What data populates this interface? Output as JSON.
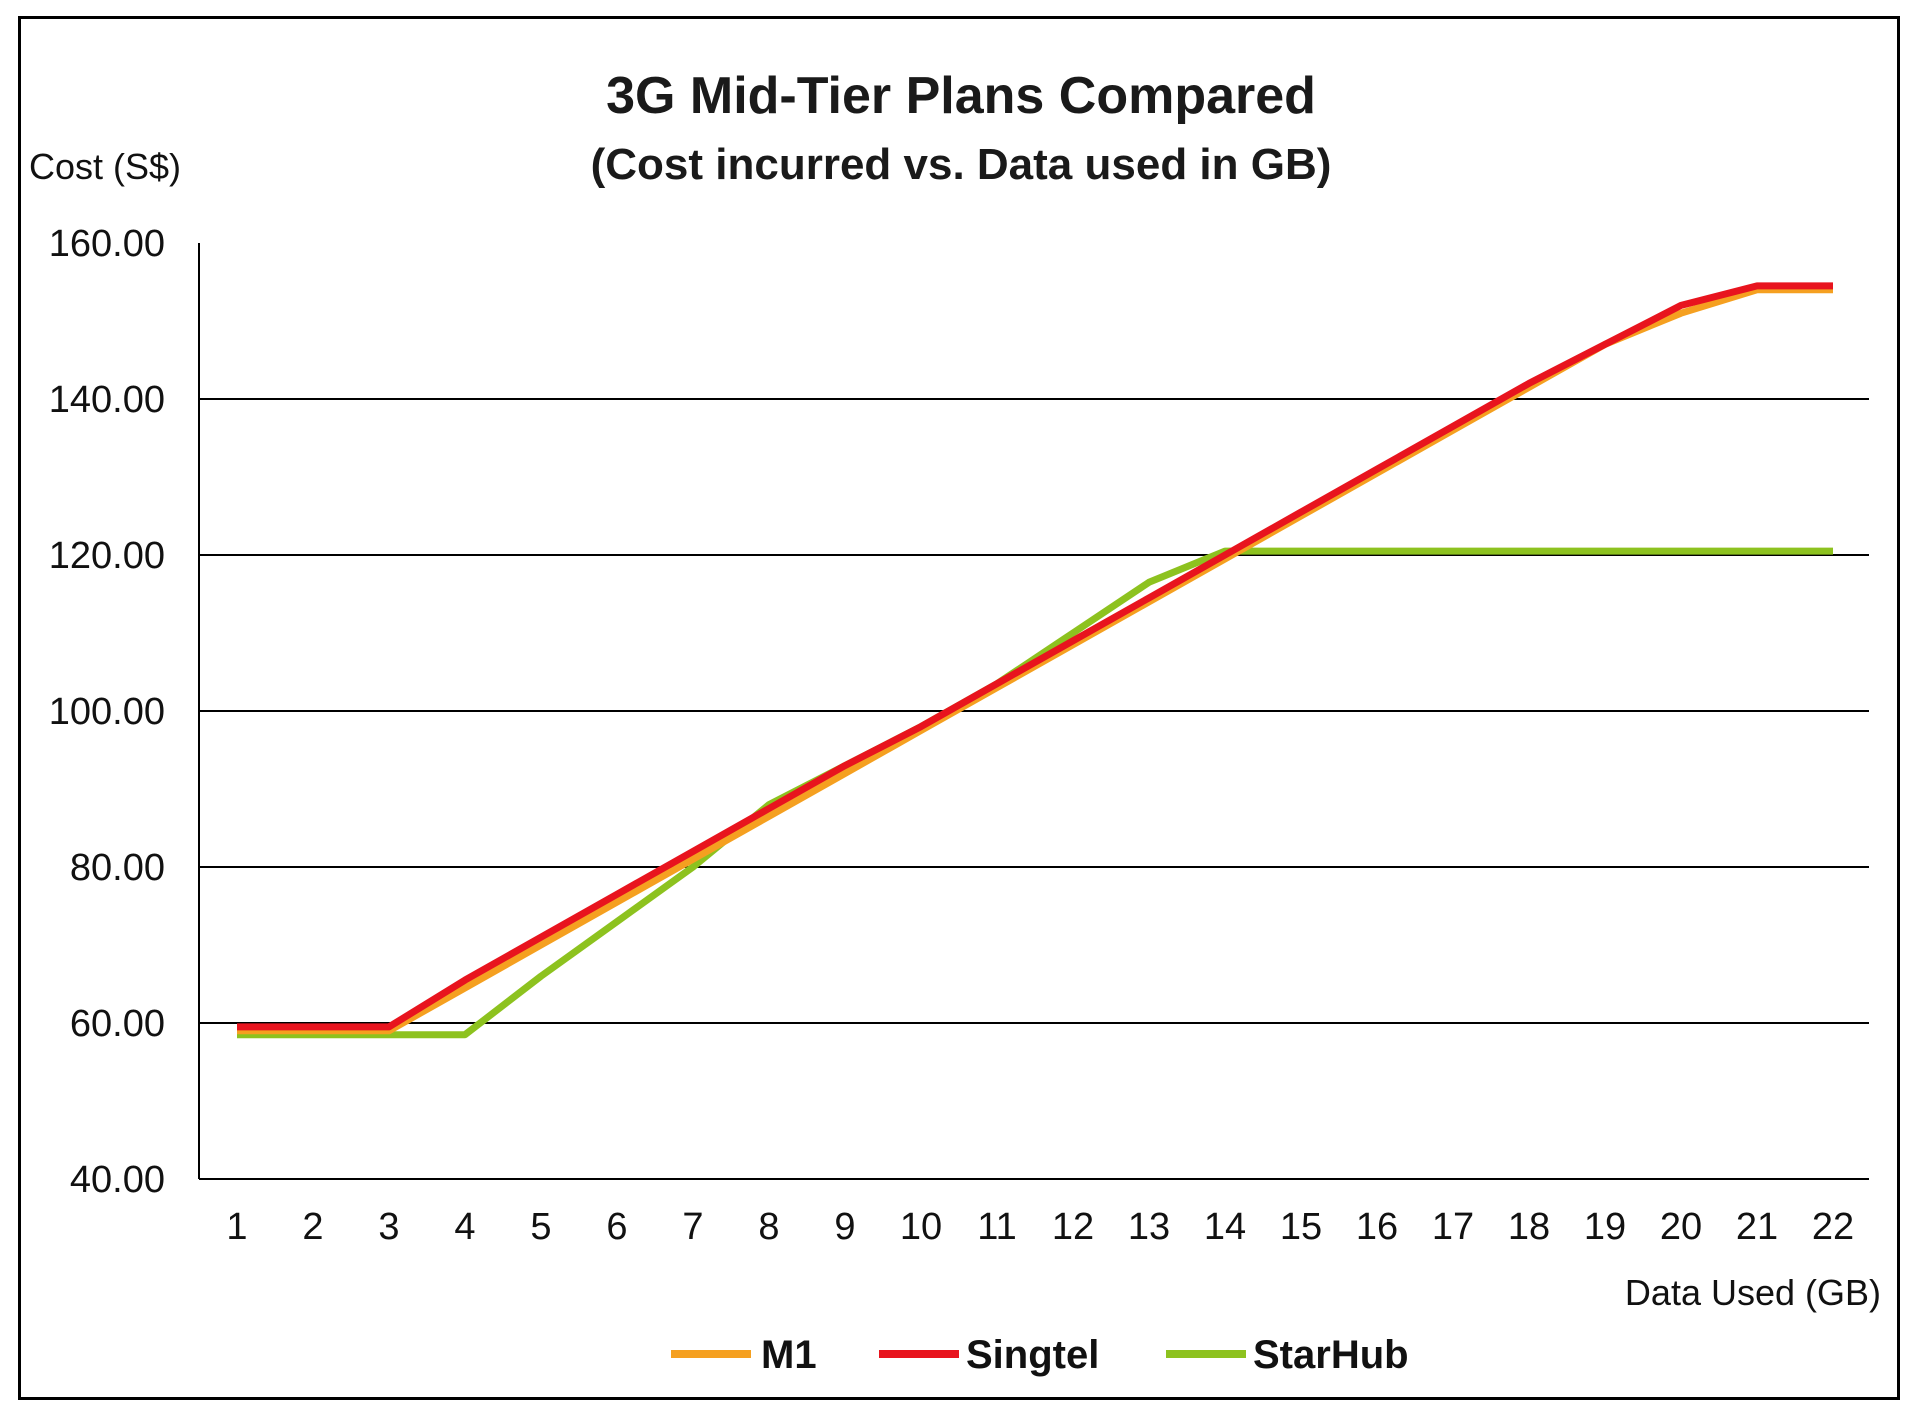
{
  "chart_data": {
    "type": "line",
    "title": "3G Mid-Tier Plans Compared",
    "subtitle": "(Cost incurred vs. Data used in GB)",
    "ylabel": "Cost (S$)",
    "xlabel": "Data Used (GB)",
    "categories": [
      "1",
      "2",
      "3",
      "4",
      "5",
      "6",
      "7",
      "8",
      "9",
      "10",
      "11",
      "12",
      "13",
      "14",
      "15",
      "16",
      "17",
      "18",
      "19",
      "20",
      "21",
      "22"
    ],
    "ylim": [
      40,
      160
    ],
    "yticks": [
      "40.00",
      "60.00",
      "80.00",
      "100.00",
      "120.00",
      "140.00",
      "160.00"
    ],
    "grid": "horizontal",
    "legend_position": "bottom",
    "series": [
      {
        "name": "M1",
        "color": "#f5a020",
        "values": [
          59,
          59,
          59,
          64.5,
          70,
          75.5,
          81,
          86.5,
          92,
          97.5,
          103,
          108.5,
          114,
          119.5,
          125,
          130.5,
          136,
          141.5,
          147,
          151,
          154,
          154
        ]
      },
      {
        "name": "Singtel",
        "color": "#e8141e",
        "values": [
          59.5,
          59.5,
          59.5,
          65.5,
          71,
          76.5,
          82,
          87.5,
          93,
          98,
          103.5,
          109,
          114.5,
          120,
          125.5,
          131,
          136.5,
          142,
          147,
          152,
          154.5,
          154.5
        ]
      },
      {
        "name": "StarHub",
        "color": "#8dc21f",
        "values": [
          58.5,
          58.5,
          58.5,
          58.5,
          66,
          73,
          80,
          88,
          93,
          98,
          103.5,
          110,
          116.5,
          120.5,
          120.5,
          120.5,
          120.5,
          120.5,
          120.5,
          120.5,
          120.5,
          120.5
        ]
      }
    ]
  }
}
